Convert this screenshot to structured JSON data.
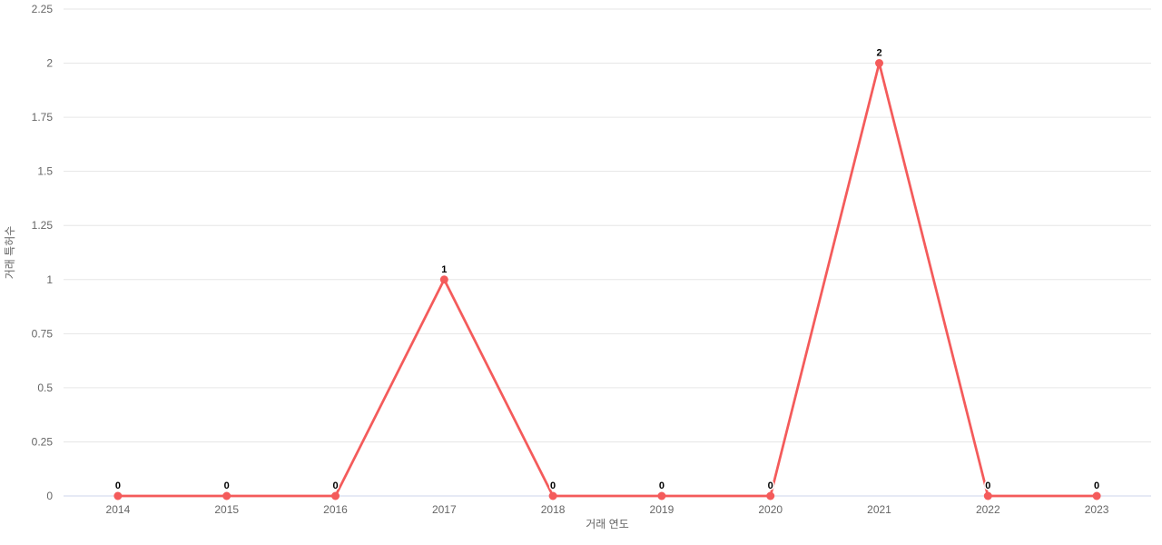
{
  "chart_data": {
    "type": "line",
    "title": "",
    "categories": [
      "2014",
      "2015",
      "2016",
      "2017",
      "2018",
      "2019",
      "2020",
      "2021",
      "2022",
      "2023"
    ],
    "values": [
      0,
      0,
      0,
      1,
      0,
      0,
      0,
      2,
      0,
      0
    ],
    "data_labels": [
      "0",
      "0",
      "0",
      "1",
      "0",
      "0",
      "0",
      "2",
      "0",
      "0"
    ],
    "xlabel": "거래 연도",
    "ylabel": "거래 특허수",
    "ylim": [
      0,
      2.25
    ],
    "ytick_step": 0.25,
    "yticks": [
      "0",
      "0.25",
      "0.5",
      "0.75",
      "1",
      "1.25",
      "1.5",
      "1.75",
      "2",
      "2.25"
    ],
    "grid": true,
    "legend": false,
    "colors": {
      "line": "#f45b5b",
      "marker": "#f45b5b",
      "grid": "#e6e6e6",
      "axis_line": "#ccd6eb",
      "tick_label": "#666666",
      "axis_title": "#666666",
      "data_label": "#000000",
      "background": "#ffffff"
    }
  }
}
